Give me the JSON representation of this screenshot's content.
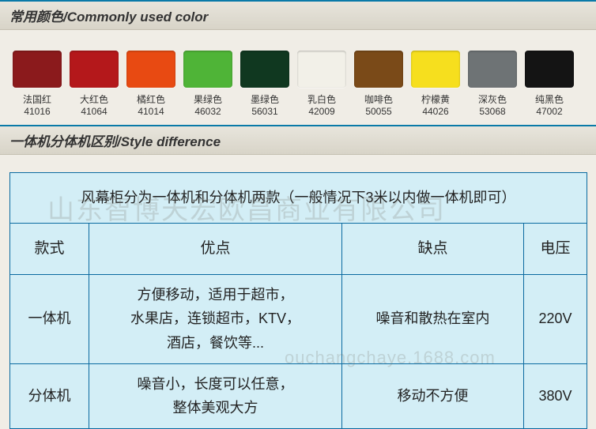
{
  "headers": {
    "colors": "常用颜色/Commonly used color",
    "style": "一体机分体机区别/Style difference"
  },
  "swatches": [
    {
      "name": "法国红",
      "code": "41016",
      "color": "#8b1a1c"
    },
    {
      "name": "大红色",
      "code": "41064",
      "color": "#b4181b"
    },
    {
      "name": "橘红色",
      "code": "41014",
      "color": "#e84a12"
    },
    {
      "name": "果绿色",
      "code": "46032",
      "color": "#4fb437"
    },
    {
      "name": "墨绿色",
      "code": "56031",
      "color": "#103820"
    },
    {
      "name": "乳白色",
      "code": "42009",
      "color": "#f2f0e8"
    },
    {
      "name": "咖啡色",
      "code": "50055",
      "color": "#7a4a18"
    },
    {
      "name": "柠檬黄",
      "code": "44026",
      "color": "#f6df1e"
    },
    {
      "name": "深灰色",
      "code": "53068",
      "color": "#6e7375"
    },
    {
      "name": "纯黑色",
      "code": "47002",
      "color": "#141414"
    }
  ],
  "table": {
    "caption": "风幕柜分为一体机和分体机两款（一般情况下3米以内做一体机即可）",
    "head": {
      "c1": "款式",
      "c2": "优点",
      "c3": "缺点",
      "c4": "电压"
    },
    "rows": [
      {
        "c1": "一体机",
        "c2": "方便移动，适用于超市，\n水果店，连锁超市，KTV，\n酒店，餐饮等...",
        "c3": "噪音和散热在室内",
        "c4": "220V"
      },
      {
        "c1": "分体机",
        "c2": "噪音小，长度可以任意，\n整体美观大方",
        "c3": "移动不方便",
        "c4": "380V"
      }
    ],
    "background_color": "#d3eef6",
    "border_color": "#0a6aa0"
  },
  "watermarks": {
    "wm1": "山东智博天宏欧昌商业有限公司",
    "wm2": "ouchangchaye.1688.com"
  }
}
